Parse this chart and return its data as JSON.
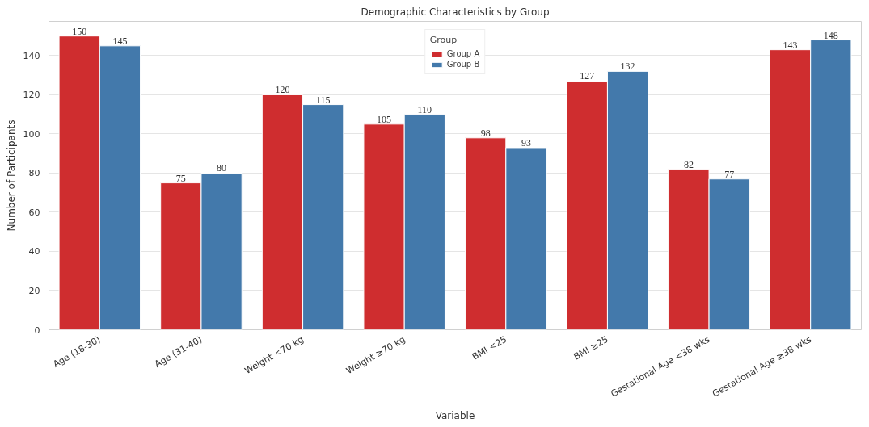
{
  "chart_data": {
    "type": "bar",
    "title": "Demographic Characteristics by Group",
    "xlabel": "Variable",
    "ylabel": "Number of Participants",
    "legend_title": "Group",
    "categories": [
      "Age (18-30)",
      "Age (31-40)",
      "Weight <70 kg",
      "Weight ≥70 kg",
      "BMI <25",
      "BMI ≥25",
      "Gestational Age <38 wks",
      "Gestational Age ≥38 wks"
    ],
    "series": [
      {
        "name": "Group A",
        "color": "#cf2d2f",
        "values": [
          150,
          75,
          120,
          105,
          98,
          127,
          82,
          143
        ]
      },
      {
        "name": "Group B",
        "color": "#4379ab",
        "values": [
          145,
          80,
          115,
          110,
          93,
          132,
          77,
          148
        ]
      }
    ],
    "ylim": [
      0,
      157.5
    ],
    "yticks": [
      0,
      20,
      40,
      60,
      80,
      100,
      120,
      140
    ],
    "grid": "y",
    "legend": "top",
    "data_labels": true
  }
}
